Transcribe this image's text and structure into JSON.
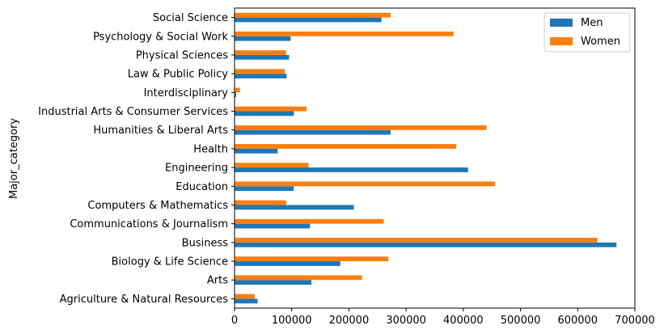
{
  "chart_data": {
    "type": "bar",
    "orientation": "horizontal",
    "title": "",
    "xlabel": "",
    "ylabel": "Major_category",
    "xlim": [
      0,
      700000
    ],
    "xticks": [
      0,
      100000,
      200000,
      300000,
      400000,
      500000,
      600000,
      700000
    ],
    "grid": false,
    "legend_position": "top-right",
    "categories": [
      "Agriculture & Natural Resources",
      "Arts",
      "Biology & Life Science",
      "Business",
      "Communications & Journalism",
      "Computers & Mathematics",
      "Education",
      "Engineering",
      "Health",
      "Humanities & Liberal Arts",
      "Industrial Arts & Consumer Services",
      "Interdisciplinary",
      "Law & Public Policy",
      "Physical Sciences",
      "Psychology & Social Work",
      "Social Science"
    ],
    "series": [
      {
        "name": "Men",
        "color": "#1f77b4",
        "values": [
          40357,
          134390,
          184919,
          667852,
          131921,
          208725,
          103526,
          408307,
          75517,
          272846,
          103781,
          2817,
          91129,
          95390,
          98115,
          256834
        ]
      },
      {
        "name": "Women",
        "color": "#ff7f0e",
        "values": [
          35263,
          222740,
          268943,
          634524,
          260680,
          90283,
          455603,
          129276,
          387713,
          440622,
          126011,
          9479,
          87978,
          90089,
          382892,
          273132
        ]
      }
    ]
  }
}
